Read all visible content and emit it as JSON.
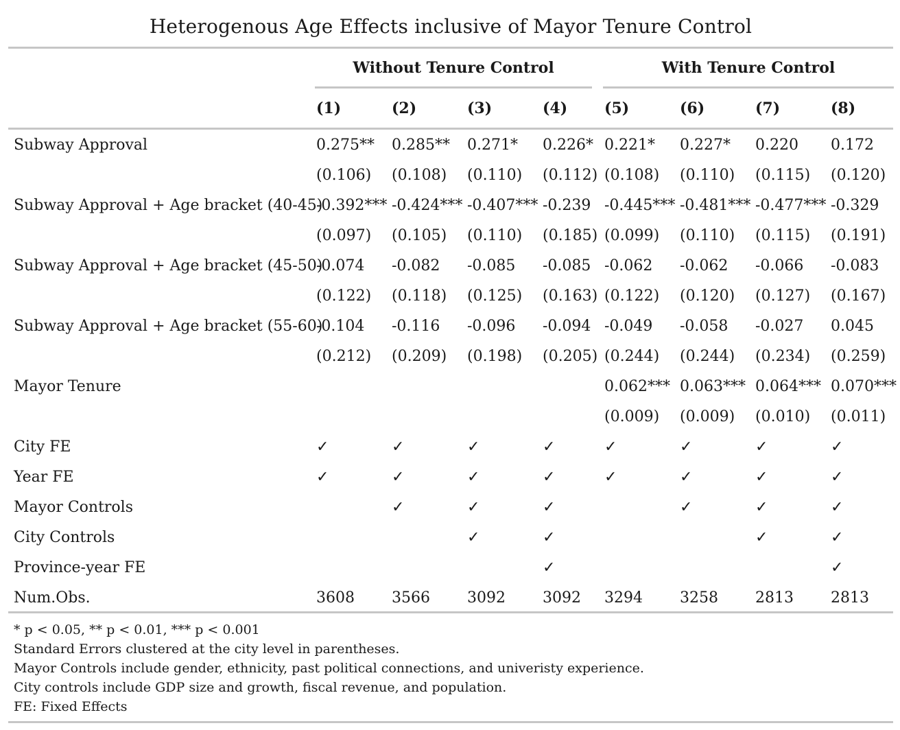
{
  "title": "Heterogenous Age Effects inclusive of Mayor Tenure Control",
  "column_groups": [
    {
      "label": "Without Tenure Control"
    },
    {
      "label": "With Tenure Control"
    }
  ],
  "columns": [
    "(1)",
    "(2)",
    "(3)",
    "(4)",
    "(5)",
    "(6)",
    "(7)",
    "(8)"
  ],
  "rows": [
    {
      "label": "Subway Approval",
      "values": [
        "0.275**",
        "0.285**",
        "0.271*",
        "0.226*",
        "0.221*",
        "0.227*",
        "0.220",
        "0.172"
      ],
      "se": [
        "(0.106)",
        "(0.108)",
        "(0.110)",
        "(0.112)",
        "(0.108)",
        "(0.110)",
        "(0.115)",
        "(0.120)"
      ]
    },
    {
      "label": "Subway Approval + Age bracket (40-45)",
      "values": [
        "-0.392***",
        "-0.424***",
        "-0.407***",
        "-0.239",
        "-0.445***",
        "-0.481***",
        "-0.477***",
        "-0.329"
      ],
      "se": [
        "(0.097)",
        "(0.105)",
        "(0.110)",
        "(0.185)",
        "(0.099)",
        "(0.110)",
        "(0.115)",
        "(0.191)"
      ]
    },
    {
      "label": "Subway Approval + Age bracket (45-50)",
      "values": [
        "-0.074",
        "-0.082",
        "-0.085",
        "-0.085",
        "-0.062",
        "-0.062",
        "-0.066",
        "-0.083"
      ],
      "se": [
        "(0.122)",
        "(0.118)",
        "(0.125)",
        "(0.163)",
        "(0.122)",
        "(0.120)",
        "(0.127)",
        "(0.167)"
      ]
    },
    {
      "label": "Subway Approval + Age bracket (55-60)",
      "values": [
        "-0.104",
        "-0.116",
        "-0.096",
        "-0.094",
        "-0.049",
        "-0.058",
        "-0.027",
        "0.045"
      ],
      "se": [
        "(0.212)",
        "(0.209)",
        "(0.198)",
        "(0.205)",
        "(0.244)",
        "(0.244)",
        "(0.234)",
        "(0.259)"
      ]
    },
    {
      "label": "Mayor Tenure",
      "values": [
        "",
        "",
        "",
        "",
        "0.062***",
        "0.063***",
        "0.064***",
        "0.070***"
      ],
      "se": [
        "",
        "",
        "",
        "",
        "(0.009)",
        "(0.009)",
        "(0.010)",
        "(0.011)"
      ]
    }
  ],
  "check_mark": "✓",
  "indicator_rows": [
    {
      "label": "City FE",
      "checks": [
        true,
        true,
        true,
        true,
        true,
        true,
        true,
        true
      ]
    },
    {
      "label": "Year FE",
      "checks": [
        true,
        true,
        true,
        true,
        true,
        true,
        true,
        true
      ]
    },
    {
      "label": "Mayor Controls",
      "checks": [
        false,
        true,
        true,
        true,
        false,
        true,
        true,
        true
      ]
    },
    {
      "label": "City Controls",
      "checks": [
        false,
        false,
        true,
        true,
        false,
        false,
        true,
        true
      ]
    },
    {
      "label": "Province-year FE",
      "checks": [
        false,
        false,
        false,
        true,
        false,
        false,
        false,
        true
      ]
    }
  ],
  "num_obs": {
    "label": "Num.Obs.",
    "values": [
      "3608",
      "3566",
      "3092",
      "3092",
      "3294",
      "3258",
      "2813",
      "2813"
    ]
  },
  "notes": [
    "* p < 0.05, ** p < 0.01, *** p < 0.001",
    "Standard Errors clustered at the city level in parentheses.",
    "Mayor Controls include gender, ethnicity, past political connections, and univeristy experience.",
    "City controls include GDP size and growth, fiscal revenue, and population.",
    "FE: Fixed Effects"
  ],
  "colors": {
    "text": "#1a1a1a",
    "rule": "#c6c6c6"
  }
}
